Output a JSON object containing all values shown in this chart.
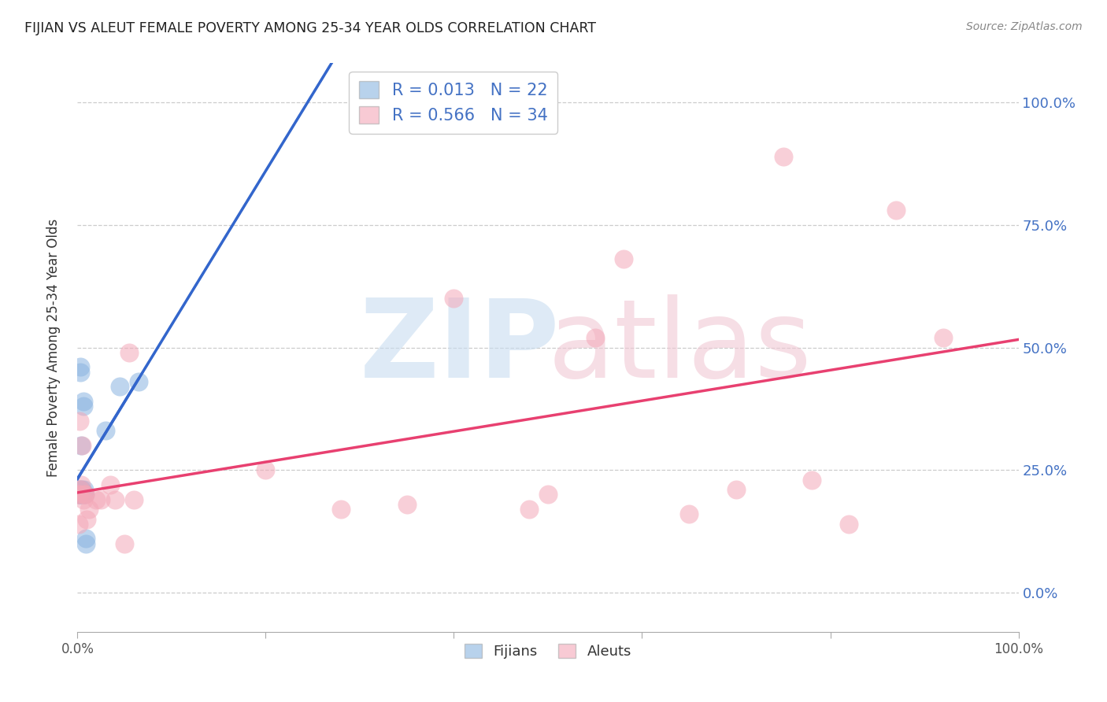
{
  "title": "FIJIAN VS ALEUT FEMALE POVERTY AMONG 25-34 YEAR OLDS CORRELATION CHART",
  "source": "Source: ZipAtlas.com",
  "ylabel": "Female Poverty Among 25-34 Year Olds",
  "fijian_color": "#8ab4e0",
  "aleut_color": "#f4a8b8",
  "fijian_line_color": "#3366cc",
  "aleut_line_color": "#e84070",
  "fijian_R": "0.013",
  "fijian_N": "22",
  "aleut_R": "0.566",
  "aleut_N": "34",
  "right_tick_color": "#4472c4",
  "watermark_zip_color": "#c8ddf0",
  "watermark_atlas_color": "#f0c8d4",
  "ytick_labels": [
    "0.0%",
    "25.0%",
    "50.0%",
    "75.0%",
    "100.0%"
  ],
  "ytick_values": [
    0.0,
    0.25,
    0.5,
    0.75,
    1.0
  ],
  "background_color": "#ffffff",
  "grid_color": "#cccccc",
  "fijian_x": [
    0.001,
    0.001,
    0.002,
    0.002,
    0.002,
    0.003,
    0.003,
    0.003,
    0.004,
    0.004,
    0.005,
    0.005,
    0.006,
    0.006,
    0.007,
    0.007,
    0.008,
    0.009,
    0.009,
    0.03,
    0.045,
    0.065
  ],
  "fijian_y": [
    0.2,
    0.21,
    0.2,
    0.21,
    0.2,
    0.45,
    0.46,
    0.2,
    0.21,
    0.3,
    0.2,
    0.21,
    0.38,
    0.39,
    0.2,
    0.21,
    0.2,
    0.1,
    0.11,
    0.33,
    0.42,
    0.43
  ],
  "aleut_x": [
    0.001,
    0.001,
    0.002,
    0.002,
    0.003,
    0.004,
    0.005,
    0.006,
    0.007,
    0.008,
    0.01,
    0.012,
    0.02,
    0.025,
    0.035,
    0.04,
    0.05,
    0.055,
    0.06,
    0.2,
    0.28,
    0.35,
    0.4,
    0.48,
    0.5,
    0.55,
    0.58,
    0.65,
    0.7,
    0.75,
    0.78,
    0.82,
    0.87,
    0.92
  ],
  "aleut_y": [
    0.2,
    0.14,
    0.2,
    0.35,
    0.21,
    0.22,
    0.3,
    0.19,
    0.2,
    0.2,
    0.15,
    0.17,
    0.19,
    0.19,
    0.22,
    0.19,
    0.1,
    0.49,
    0.19,
    0.25,
    0.17,
    0.18,
    0.6,
    0.17,
    0.2,
    0.52,
    0.68,
    0.16,
    0.21,
    0.89,
    0.23,
    0.14,
    0.78,
    0.52
  ],
  "xlim": [
    0,
    1.0
  ],
  "ylim": [
    -0.08,
    1.08
  ],
  "xtick_positions": [
    0.0,
    0.2,
    0.4,
    0.6,
    0.8,
    1.0
  ]
}
